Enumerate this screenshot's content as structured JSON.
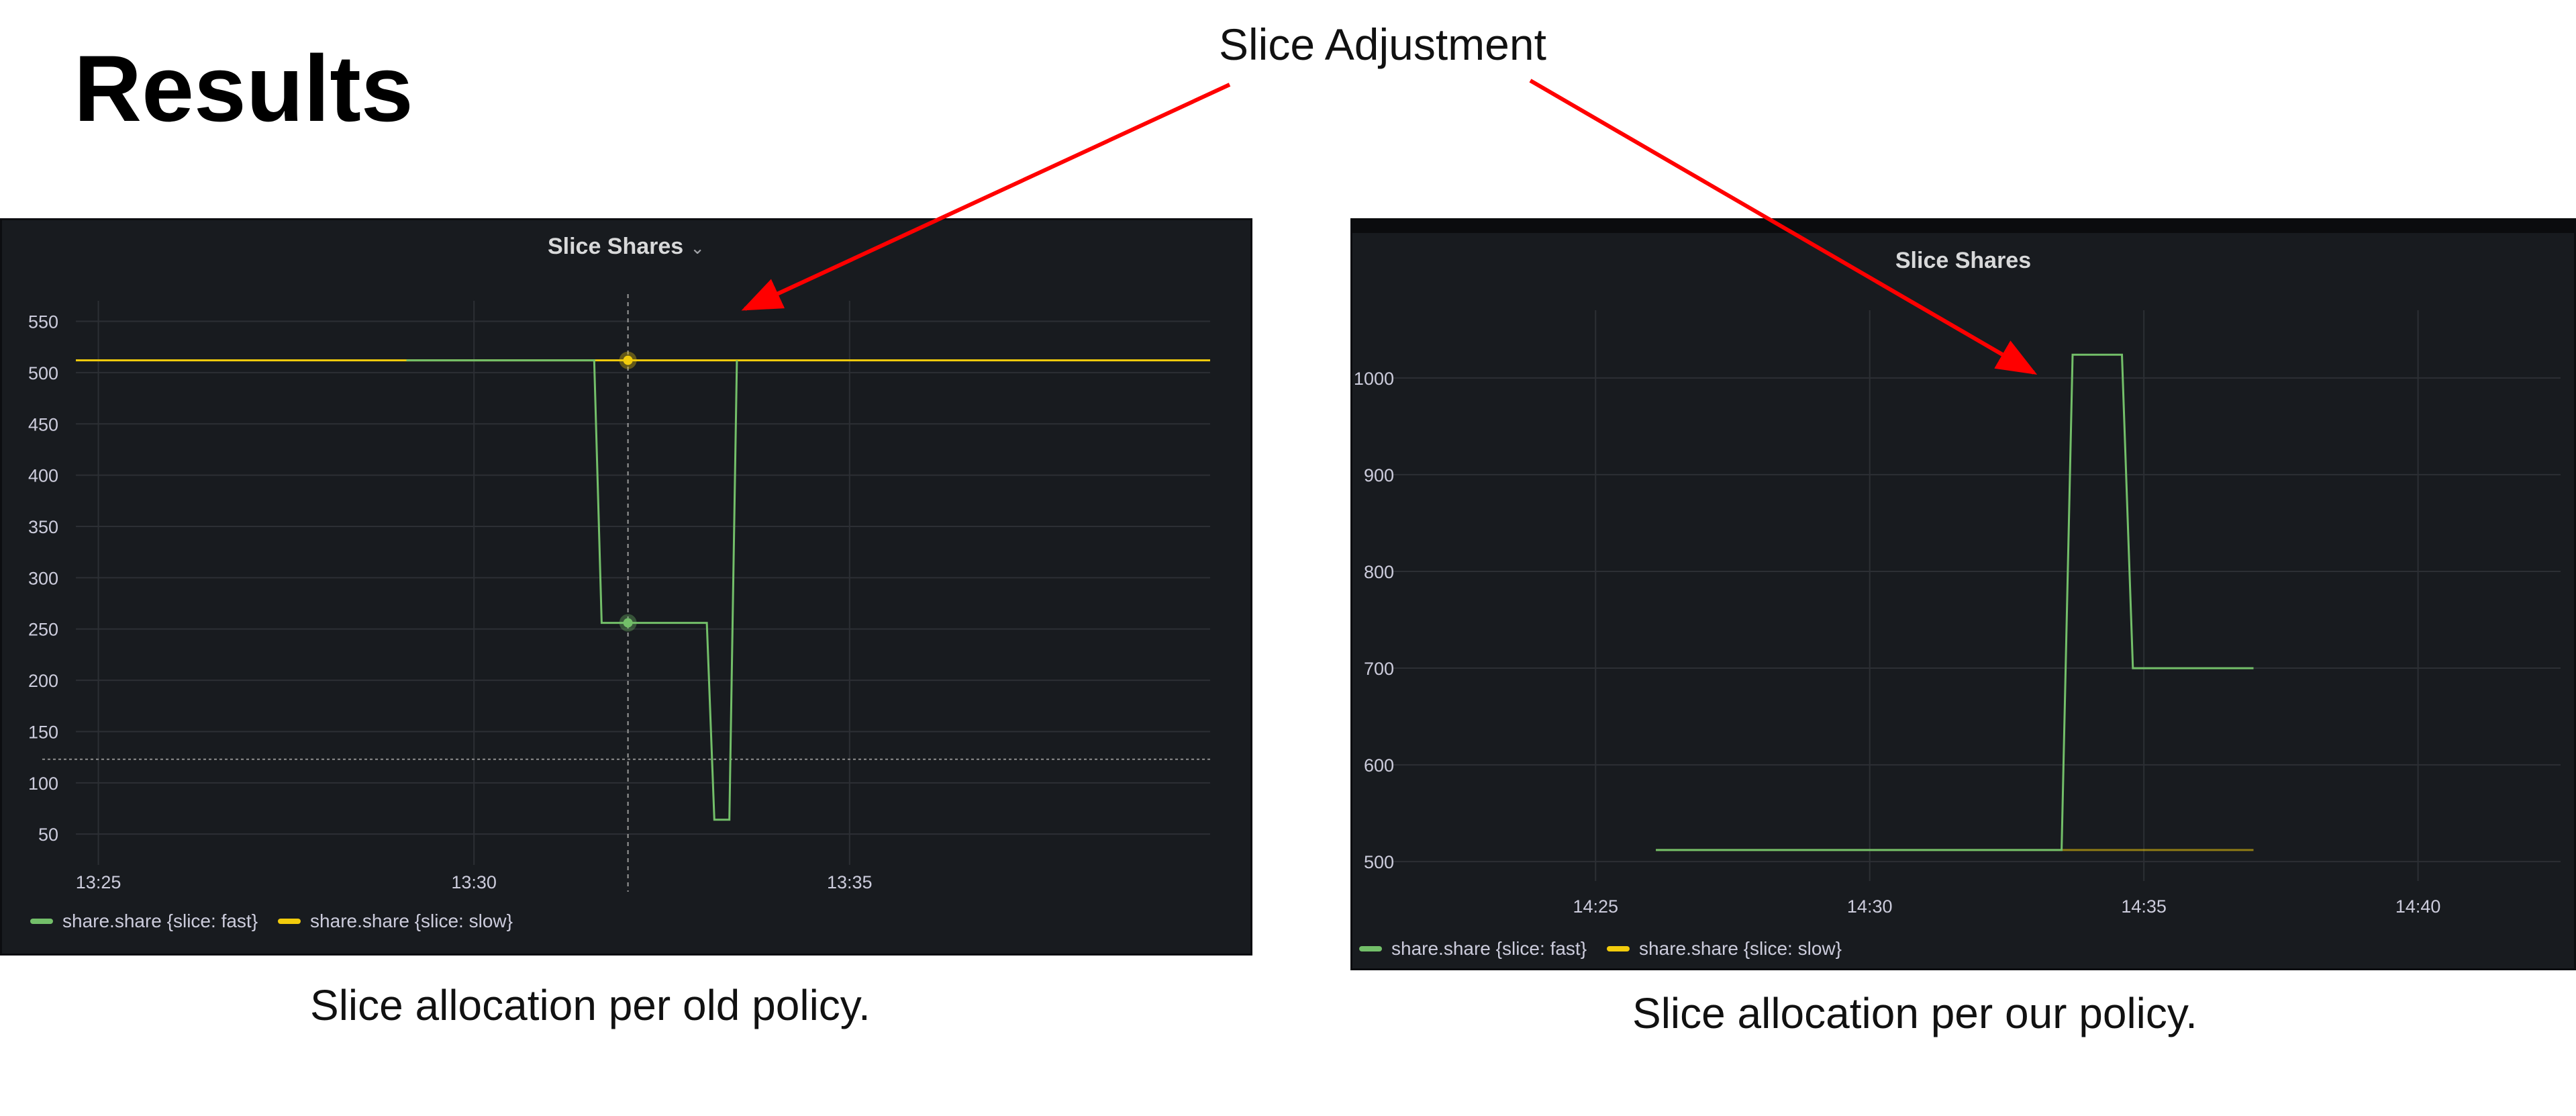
{
  "slide": {
    "title": "Results",
    "annotation": "Slice Adjustment",
    "caption_left": "Slice allocation per old policy.",
    "caption_right": "Slice allocation per our policy."
  },
  "colors": {
    "background": "#181b1f",
    "grid": "#2c2f34",
    "axis_text": "#ccccdc",
    "fast": "#73bf69",
    "slow": "#f2cc0c",
    "arrow": "#ff0000"
  },
  "icons": {
    "title_dropdown": "chevron-down-icon"
  },
  "chart_data": [
    {
      "type": "line",
      "title": "Slice Shares",
      "has_dropdown": true,
      "xlabel": "",
      "ylabel": "",
      "x_ticks": [
        "13:25",
        "13:30",
        "13:35"
      ],
      "xlim": [
        "13:24.7",
        "13:39.8"
      ],
      "y_ticks": [
        50,
        100,
        150,
        200,
        250,
        300,
        350,
        400,
        450,
        500,
        550
      ],
      "ylim": [
        20,
        570
      ],
      "grid": true,
      "legend": "bottom-left",
      "hover_time": "13:32.05",
      "threshold": 123,
      "series": [
        {
          "name": "share.share {slice: fast}",
          "color": "#73bf69",
          "points": [
            [
              "13:29.1",
              512
            ],
            [
              "13:31.6",
              512
            ],
            [
              "13:31.7",
              256
            ],
            [
              "13:33.1",
              256
            ],
            [
              "13:33.2",
              64
            ],
            [
              "13:33.4",
              64
            ],
            [
              "13:33.5",
              512
            ]
          ],
          "hover_value": 256
        },
        {
          "name": "share.share {slice: slow}",
          "color": "#f2cc0c",
          "points": [
            [
              "13:24.7",
              512
            ],
            [
              "13:39.8",
              512
            ]
          ],
          "hover_value": 512
        }
      ]
    },
    {
      "type": "line",
      "title": "Slice Shares",
      "has_dropdown": false,
      "xlabel": "",
      "ylabel": "",
      "x_ticks": [
        "14:25",
        "14:30",
        "14:35",
        "14:40"
      ],
      "xlim": [
        "14:21.3",
        "14:42.6"
      ],
      "y_ticks": [
        500,
        600,
        700,
        800,
        900,
        1000
      ],
      "ylim": [
        480,
        1070
      ],
      "grid": true,
      "legend": "bottom-left",
      "series": [
        {
          "name": "share.share {slice: fast}",
          "color": "#73bf69",
          "points": [
            [
              "14:26.1",
              512
            ],
            [
              "14:33.5",
              512
            ],
            [
              "14:33.7",
              1024
            ],
            [
              "14:34.6",
              1024
            ],
            [
              "14:34.8",
              700
            ],
            [
              "14:37.0",
              700
            ]
          ]
        },
        {
          "name": "share.share {slice: slow}",
          "color": "#f2cc0c",
          "points": [
            [
              "14:26.1",
              512
            ],
            [
              "14:37.0",
              512
            ]
          ]
        }
      ]
    }
  ]
}
